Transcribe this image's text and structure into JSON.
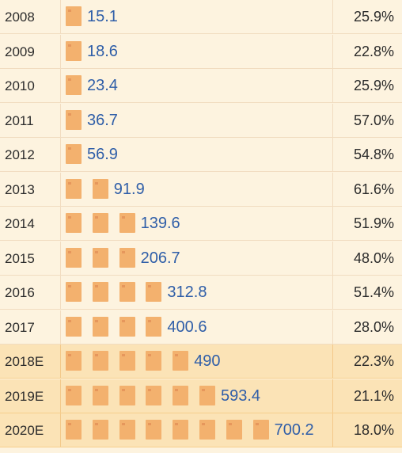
{
  "chart_data": {
    "type": "bar",
    "orientation": "horizontal",
    "categories": [
      "2008",
      "2009",
      "2010",
      "2011",
      "2012",
      "2013",
      "2014",
      "2015",
      "2016",
      "2017",
      "2018E",
      "2019E",
      "2020E"
    ],
    "series": [
      {
        "values": [
          15.1,
          18.6,
          23.4,
          36.7,
          56.9,
          91.9,
          139.6,
          206.7,
          312.8,
          400.6,
          490,
          593.4,
          700.2
        ],
        "labels": [
          "15.1",
          "18.6",
          "23.4",
          "36.7",
          "56.9",
          "91.9",
          "139.6",
          "206.7",
          "312.8",
          "400.6",
          "490",
          "593.4",
          "700.2"
        ]
      }
    ],
    "growth_labels": [
      "25.9%",
      "22.8%",
      "25.9%",
      "57.0%",
      "54.8%",
      "61.6%",
      "51.9%",
      "48.0%",
      "51.4%",
      "28.0%",
      "22.3%",
      "21.1%",
      "18.0%"
    ],
    "block_counts": [
      1,
      1,
      1,
      1,
      1,
      2,
      3,
      3,
      4,
      4,
      5,
      6,
      8
    ],
    "last_block_fraction": [
      1,
      1,
      1,
      1,
      1,
      1,
      1,
      1,
      1,
      1,
      1,
      1,
      1
    ],
    "estimated_rows": [
      "2018E",
      "2019E",
      "2020E"
    ],
    "title": "",
    "xlabel": "",
    "ylabel": "",
    "grid": false,
    "legend": "none"
  },
  "colors": {
    "background": "#fdf3df",
    "estimate_background": "#fbe3b6",
    "bar": "#f3b16e",
    "value_text": "#2f5ea8",
    "label_text": "#2b2b2b"
  }
}
